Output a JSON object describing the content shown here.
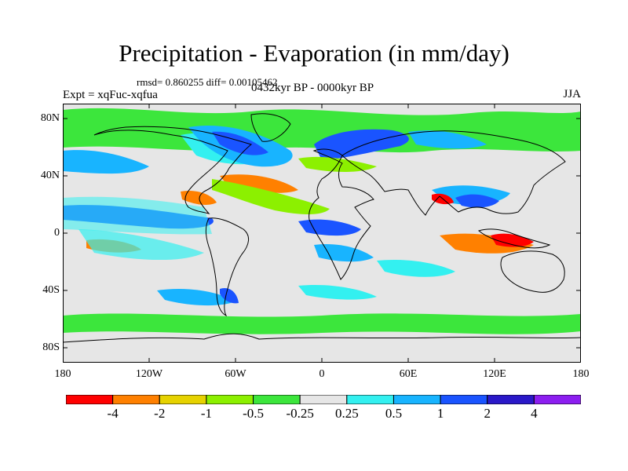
{
  "title": "Precipitation - Evaporation (in mm/day)",
  "stats": "rmsd= 0.860255 diff= 0.00105462",
  "experiment": "Expt = xqFuc-xqfua",
  "period": "0432kyr BP - 0000kyr BP",
  "season": "JJA",
  "map": {
    "lat_labels": [
      "80N",
      "40N",
      "0",
      "40S",
      "80S"
    ],
    "lon_labels": [
      "180",
      "120W",
      "60W",
      "0",
      "60E",
      "120E",
      "180"
    ]
  },
  "colorbar": {
    "labels": [
      "-4",
      "-2",
      "-1",
      "-0.5",
      "-0.25",
      "0.25",
      "0.5",
      "1",
      "2",
      "4"
    ],
    "colors": [
      "#ff0000",
      "#ff8000",
      "#e6d200",
      "#8cf000",
      "#3ce63c",
      "#e6e6e6",
      "#33f0f0",
      "#18b4ff",
      "#1a54ff",
      "#2a18c8",
      "#8c1ef0"
    ]
  }
}
